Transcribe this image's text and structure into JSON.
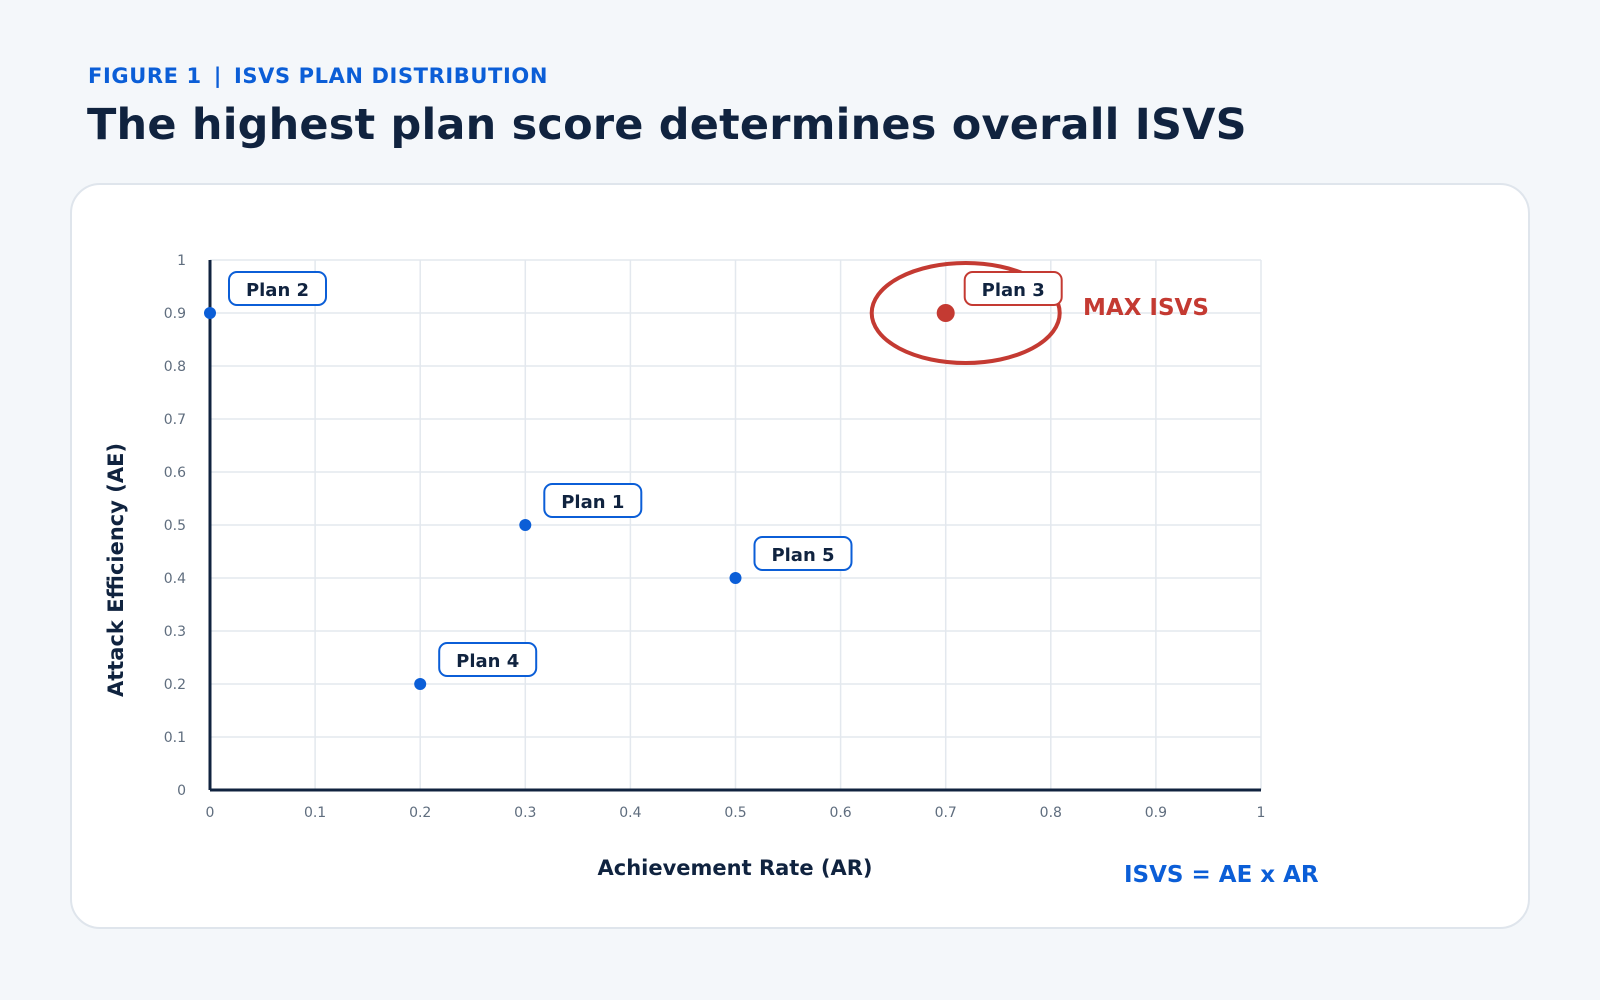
{
  "header": {
    "figure_label": "FIGURE 1",
    "figure_separator": "|",
    "figure_title": "ISVS PLAN DISTRIBUTION",
    "headline": "The highest plan score determines overall ISVS"
  },
  "chart_data": {
    "type": "scatter",
    "xlabel": "Achievement Rate (AR)",
    "ylabel": "Attack Efficiency (AE)",
    "xlim": [
      0,
      1
    ],
    "ylim": [
      0,
      1
    ],
    "x_ticks": [
      "0",
      "0.1",
      "0.2",
      "0.3",
      "0.4",
      "0.5",
      "0.6",
      "0.7",
      "0.8",
      "0.9",
      "1"
    ],
    "y_ticks": [
      "0",
      "0.1",
      "0.2",
      "0.3",
      "0.4",
      "0.5",
      "0.6",
      "0.7",
      "0.8",
      "0.9",
      "1"
    ],
    "grid": true,
    "points": [
      {
        "label": "Plan 1",
        "x": 0.3,
        "y": 0.5
      },
      {
        "label": "Plan 2",
        "x": 0.0,
        "y": 0.9
      },
      {
        "label": "Plan 3",
        "x": 0.7,
        "y": 0.9,
        "highlight": true
      },
      {
        "label": "Plan 4",
        "x": 0.2,
        "y": 0.2
      },
      {
        "label": "Plan 5",
        "x": 0.5,
        "y": 0.4
      }
    ],
    "annotations": {
      "highlight_text": "MAX ISVS",
      "formula": "ISVS = AE x AR"
    },
    "colors": {
      "point": "#0b5ed7",
      "highlight": "#c43a32",
      "grid": "#e3e8ee",
      "axis": "#10233f"
    }
  }
}
